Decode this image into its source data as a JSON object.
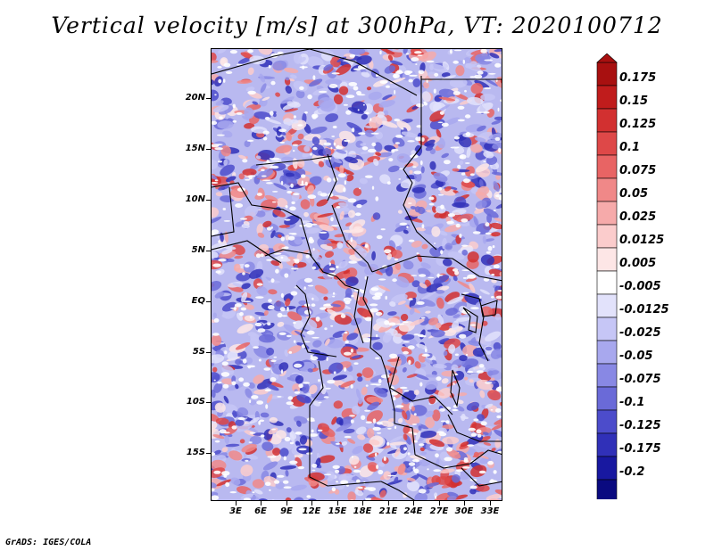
{
  "title": "Vertical velocity [m/s] at 300hPa, VT: 2020100712",
  "map": {
    "lat_labels": [
      "20N",
      "15N",
      "10N",
      "5N",
      "EQ",
      "5S",
      "10S",
      "15S"
    ],
    "lon_labels": [
      "3E",
      "6E",
      "9E",
      "12E",
      "15E",
      "18E",
      "21E",
      "24E",
      "27E",
      "30E",
      "33E"
    ]
  },
  "colorbar": {
    "levels": [
      "0.175",
      "0.15",
      "0.125",
      "0.1",
      "0.075",
      "0.05",
      "0.025",
      "0.0125",
      "0.005",
      "-0.005",
      "-0.0125",
      "-0.025",
      "-0.05",
      "-0.075",
      "-0.1",
      "-0.125",
      "-0.175",
      "-0.2"
    ],
    "colors": [
      "#a81010",
      "#c01c1c",
      "#d23030",
      "#de4848",
      "#e86464",
      "#f08888",
      "#f6aaaa",
      "#fbcccc",
      "#fde6e6",
      "#ffffff",
      "#e2e2fb",
      "#c6c6f6",
      "#a8a8ee",
      "#8888e4",
      "#6a6ad8",
      "#4c4ccb",
      "#3030b8",
      "#1818a0",
      "#0a0a80"
    ]
  },
  "credit": "GrADS: IGES/COLA"
}
